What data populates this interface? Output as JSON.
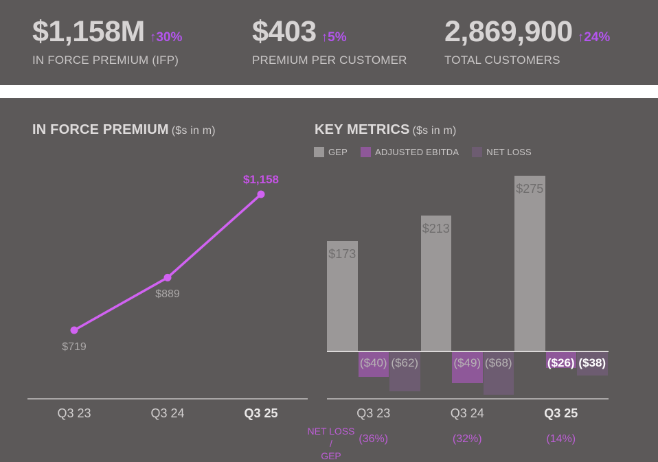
{
  "colors": {
    "background": "#5c5959",
    "accent_magenta": "#b455ef",
    "line_magenta": "#d162f2",
    "footer_magenta": "#bd5ed6",
    "gep_gray": "#9b9898",
    "ebitda_purple": "#8e5899",
    "netloss_purple": "#6d5c71"
  },
  "header": {
    "stats": [
      {
        "value": "$1,158M",
        "delta": "↑30%",
        "label": "IN FORCE PREMIUM (IFP)"
      },
      {
        "value": "$403",
        "delta": "↑5%",
        "label": "PREMIUM PER CUSTOMER"
      },
      {
        "value": "2,869,900",
        "delta": "↑24%",
        "label": "TOTAL CUSTOMERS"
      }
    ]
  },
  "ifp_chart": {
    "title": "IN FORCE PREMIUM",
    "subtitle": "($s in m)"
  },
  "key_metrics_chart": {
    "title": "KEY METRICS",
    "subtitle": "($s in m)"
  },
  "chart_data": [
    {
      "type": "line",
      "title": "IN FORCE PREMIUM ($s in m)",
      "categories": [
        "Q3 23",
        "Q3 24",
        "Q3 25"
      ],
      "values": [
        719,
        889,
        1158
      ],
      "point_labels": [
        "$719",
        "$889",
        "$1,158"
      ],
      "line_color": "#d162f2",
      "highlight_last": true,
      "grid": false
    },
    {
      "type": "bar",
      "title": "KEY METRICS ($s in m)",
      "categories": [
        "Q3 23",
        "Q3 24",
        "Q3 25"
      ],
      "series": [
        {
          "name": "GEP",
          "color": "#9b9898",
          "values": [
            173,
            213,
            275
          ],
          "labels": [
            "$173",
            "$213",
            "$275"
          ]
        },
        {
          "name": "ADJUSTED EBITDA",
          "color": "#8e5899",
          "values": [
            -40,
            -49,
            -26
          ],
          "labels": [
            "($40)",
            "($49)",
            "($26)"
          ]
        },
        {
          "name": "NET LOSS",
          "color": "#6d5c71",
          "values": [
            -62,
            -68,
            -38
          ],
          "labels": [
            "($62)",
            "($68)",
            "($38)"
          ]
        }
      ],
      "footer": {
        "label_line1": "NET LOSS /",
        "label_line2": "GEP",
        "values": [
          "(36%)",
          "(32%)",
          "(14%)"
        ]
      },
      "highlight_last_group": true,
      "grid": false
    }
  ]
}
